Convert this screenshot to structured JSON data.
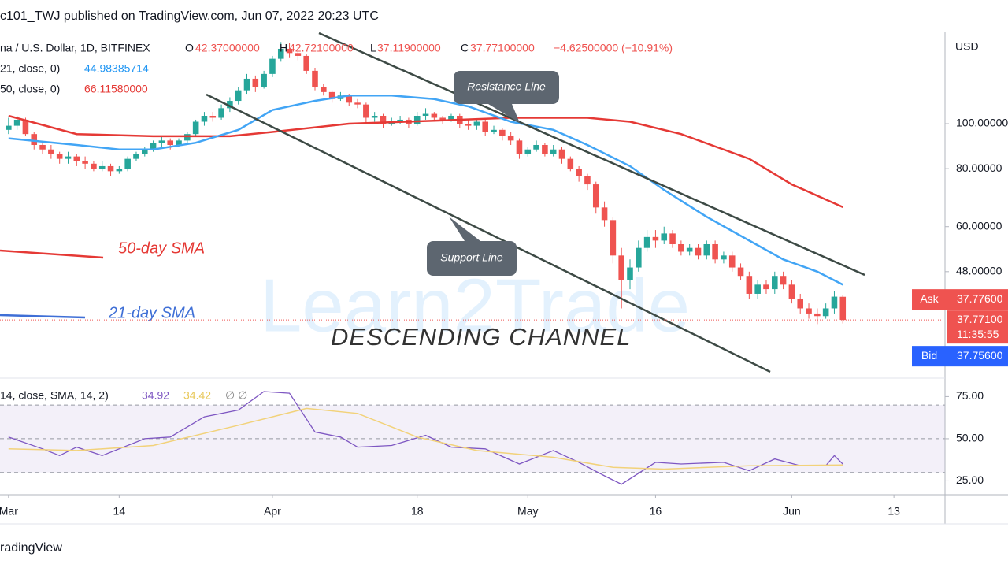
{
  "header": {
    "published": "c101_TWJ published on TradingView.com, Jun 07, 2022 20:23 UTC",
    "symbol": "na / U.S. Dollar, 1D, BITFINEX",
    "o_label": "O",
    "o": "42.37000000",
    "h_label": "H",
    "h": "42.72100000",
    "l_label": "L",
    "l": "37.11900000",
    "c_label": "C",
    "c": "37.77100000",
    "change": "−4.62500000 (−10.91%)",
    "sma21_label": "21, close, 0)",
    "sma21": "44.98385714",
    "sma50_label": "50, close, 0)",
    "sma50": "66.11580000",
    "footer": "radingView"
  },
  "chart_data": {
    "type": "candlestick",
    "log_scale": true,
    "y_axis_label": "USD",
    "xlim": [
      "2022-02-28",
      "2022-06-19"
    ],
    "ylim": [
      28.3,
      158
    ],
    "yticks": [
      {
        "value": 100,
        "label": "100.00000"
      },
      {
        "value": 80,
        "label": "80.00000"
      },
      {
        "value": 60,
        "label": "60.00000"
      },
      {
        "value": 48,
        "label": "48.00000"
      }
    ],
    "xticks": [
      {
        "value": "2022-03-01",
        "label": "Mar"
      },
      {
        "value": "2022-03-14",
        "label": "14"
      },
      {
        "value": "2022-04-01",
        "label": "Apr"
      },
      {
        "value": "2022-04-18",
        "label": "18"
      },
      {
        "value": "2022-05-01",
        "label": "May"
      },
      {
        "value": "2022-05-16",
        "label": "16"
      },
      {
        "value": "2022-06-01",
        "label": "Jun"
      },
      {
        "value": "2022-06-13",
        "label": "13"
      }
    ],
    "up_color": "#26a69a",
    "down_color": "#ef5350",
    "x": [
      "2022-03-01",
      "2022-03-02",
      "2022-03-03",
      "2022-03-04",
      "2022-03-05",
      "2022-03-06",
      "2022-03-07",
      "2022-03-08",
      "2022-03-09",
      "2022-03-10",
      "2022-03-11",
      "2022-03-12",
      "2022-03-13",
      "2022-03-14",
      "2022-03-15",
      "2022-03-16",
      "2022-03-17",
      "2022-03-18",
      "2022-03-19",
      "2022-03-20",
      "2022-03-21",
      "2022-03-22",
      "2022-03-23",
      "2022-03-24",
      "2022-03-25",
      "2022-03-26",
      "2022-03-27",
      "2022-03-28",
      "2022-03-29",
      "2022-03-30",
      "2022-03-31",
      "2022-04-01",
      "2022-04-02",
      "2022-04-03",
      "2022-04-04",
      "2022-04-05",
      "2022-04-06",
      "2022-04-07",
      "2022-04-08",
      "2022-04-09",
      "2022-04-10",
      "2022-04-11",
      "2022-04-12",
      "2022-04-13",
      "2022-04-14",
      "2022-04-15",
      "2022-04-16",
      "2022-04-17",
      "2022-04-18",
      "2022-04-19",
      "2022-04-20",
      "2022-04-21",
      "2022-04-22",
      "2022-04-23",
      "2022-04-24",
      "2022-04-25",
      "2022-04-26",
      "2022-04-27",
      "2022-04-28",
      "2022-04-29",
      "2022-04-30",
      "2022-05-01",
      "2022-05-02",
      "2022-05-03",
      "2022-05-04",
      "2022-05-05",
      "2022-05-06",
      "2022-05-07",
      "2022-05-08",
      "2022-05-09",
      "2022-05-10",
      "2022-05-11",
      "2022-05-12",
      "2022-05-13",
      "2022-05-14",
      "2022-05-15",
      "2022-05-16",
      "2022-05-17",
      "2022-05-18",
      "2022-05-19",
      "2022-05-20",
      "2022-05-21",
      "2022-05-22",
      "2022-05-23",
      "2022-05-24",
      "2022-05-25",
      "2022-05-26",
      "2022-05-27",
      "2022-05-28",
      "2022-05-29",
      "2022-05-30",
      "2022-05-31",
      "2022-06-01",
      "2022-06-02",
      "2022-06-03",
      "2022-06-04",
      "2022-06-05",
      "2022-06-06",
      "2022-06-07"
    ],
    "candles": [
      [
        97,
        103,
        95,
        99
      ],
      [
        99,
        104,
        97,
        102
      ],
      [
        102,
        103,
        94,
        95
      ],
      [
        95,
        96,
        88,
        90
      ],
      [
        90,
        91,
        86,
        88
      ],
      [
        88,
        90,
        84,
        86
      ],
      [
        86,
        87,
        82,
        84
      ],
      [
        84,
        87,
        82,
        85
      ],
      [
        85,
        86,
        81,
        83
      ],
      [
        83,
        85,
        80,
        82
      ],
      [
        82,
        83,
        79,
        80
      ],
      [
        80,
        83,
        79,
        81
      ],
      [
        81,
        82,
        77,
        79
      ],
      [
        79,
        81,
        78,
        80
      ],
      [
        80,
        85,
        79,
        84
      ],
      [
        84,
        87,
        83,
        86
      ],
      [
        86,
        89,
        85,
        88
      ],
      [
        88,
        92,
        87,
        91
      ],
      [
        91,
        94,
        89,
        92
      ],
      [
        92,
        93,
        88,
        90
      ],
      [
        90,
        93,
        89,
        92
      ],
      [
        92,
        96,
        91,
        95
      ],
      [
        95,
        102,
        94,
        101
      ],
      [
        101,
        106,
        99,
        104
      ],
      [
        104,
        106,
        101,
        103
      ],
      [
        103,
        110,
        102,
        108
      ],
      [
        108,
        114,
        106,
        112
      ],
      [
        112,
        120,
        110,
        118
      ],
      [
        118,
        128,
        116,
        125
      ],
      [
        125,
        127,
        117,
        120
      ],
      [
        120,
        130,
        119,
        128
      ],
      [
        128,
        140,
        126,
        138
      ],
      [
        138,
        150,
        136,
        145
      ],
      [
        145,
        149,
        139,
        142
      ],
      [
        142,
        146,
        137,
        140
      ],
      [
        140,
        141,
        128,
        130
      ],
      [
        130,
        132,
        118,
        120
      ],
      [
        120,
        122,
        115,
        117
      ],
      [
        117,
        118,
        111,
        113
      ],
      [
        113,
        117,
        112,
        115
      ],
      [
        115,
        116,
        109,
        111
      ],
      [
        111,
        113,
        108,
        110
      ],
      [
        110,
        111,
        100,
        103
      ],
      [
        103,
        106,
        101,
        104
      ],
      [
        104,
        105,
        98,
        100
      ],
      [
        100,
        103,
        99,
        101
      ],
      [
        101,
        104,
        100,
        102
      ],
      [
        102,
        103,
        98,
        100
      ],
      [
        100,
        106,
        99,
        104
      ],
      [
        104,
        108,
        102,
        105
      ],
      [
        105,
        106,
        101,
        103
      ],
      [
        103,
        104,
        100,
        102
      ],
      [
        102,
        105,
        101,
        104
      ],
      [
        104,
        105,
        98,
        100
      ],
      [
        100,
        102,
        97,
        99
      ],
      [
        99,
        102,
        97,
        101
      ],
      [
        101,
        102,
        94,
        96
      ],
      [
        96,
        99,
        95,
        97
      ],
      [
        97,
        98,
        92,
        94
      ],
      [
        94,
        96,
        90,
        92
      ],
      [
        92,
        93,
        84,
        86
      ],
      [
        86,
        89,
        85,
        88
      ],
      [
        88,
        92,
        87,
        90
      ],
      [
        90,
        91,
        85,
        86
      ],
      [
        86,
        90,
        85,
        88
      ],
      [
        88,
        89,
        82,
        84
      ],
      [
        84,
        85,
        79,
        80
      ],
      [
        80,
        81,
        75,
        77
      ],
      [
        77,
        78,
        72,
        74
      ],
      [
        74,
        75,
        64,
        66
      ],
      [
        66,
        68,
        60,
        62
      ],
      [
        62,
        63,
        50,
        52
      ],
      [
        52,
        54,
        40,
        46
      ],
      [
        46,
        51,
        44,
        49
      ],
      [
        49,
        56,
        48,
        54
      ],
      [
        54,
        59,
        53,
        57
      ],
      [
        57,
        59,
        54,
        56
      ],
      [
        56,
        60,
        55,
        58
      ],
      [
        58,
        59,
        54,
        55
      ],
      [
        55,
        56,
        52,
        53
      ],
      [
        53,
        55,
        52,
        54
      ],
      [
        54,
        55,
        51,
        52
      ],
      [
        52,
        56,
        51,
        55
      ],
      [
        55,
        56,
        50,
        51
      ],
      [
        51,
        53,
        50,
        52
      ],
      [
        52,
        53,
        48,
        49
      ],
      [
        49,
        50,
        46,
        47
      ],
      [
        47,
        48,
        42,
        43
      ],
      [
        43,
        46,
        42,
        45
      ],
      [
        45,
        46,
        43,
        44
      ],
      [
        44,
        48,
        43,
        47
      ],
      [
        47,
        48,
        44,
        45
      ],
      [
        45,
        46,
        41,
        42
      ],
      [
        42,
        43,
        39,
        40
      ],
      [
        40,
        41,
        38,
        39
      ],
      [
        39,
        40,
        37,
        38.5
      ],
      [
        38.5,
        41,
        38,
        40
      ],
      [
        40,
        43.5,
        39,
        42.4
      ],
      [
        42.37,
        42.721,
        37.119,
        37.771
      ]
    ],
    "series": [
      {
        "name": "50-day SMA",
        "color": "#e53935",
        "x": [
          "2022-03-01",
          "2022-03-09",
          "2022-03-18",
          "2022-03-27",
          "2022-04-01",
          "2022-04-10",
          "2022-04-20",
          "2022-04-29",
          "2022-05-08",
          "2022-05-13",
          "2022-05-19",
          "2022-05-27",
          "2022-06-01",
          "2022-06-07"
        ],
        "values": [
          104,
          95,
          94,
          94,
          96,
          100,
          101.5,
          103,
          103,
          101,
          95,
          84,
          74,
          66.1158
        ]
      },
      {
        "name": "21-day SMA",
        "color": "#42a5f5",
        "x": [
          "2022-03-01",
          "2022-03-09",
          "2022-03-14",
          "2022-03-18",
          "2022-03-23",
          "2022-03-28",
          "2022-04-01",
          "2022-04-06",
          "2022-04-10",
          "2022-04-15",
          "2022-04-20",
          "2022-04-24",
          "2022-04-29",
          "2022-05-04",
          "2022-05-08",
          "2022-05-13",
          "2022-05-17",
          "2022-05-22",
          "2022-05-27",
          "2022-05-31",
          "2022-06-04",
          "2022-06-07"
        ],
        "values": [
          93,
          90,
          88,
          88,
          91,
          97,
          107,
          112,
          115,
          115,
          113,
          109,
          101,
          97,
          90,
          81,
          72,
          63,
          56,
          51,
          48,
          44.98385714
        ]
      }
    ],
    "price_labels": {
      "ask_label": "Ask",
      "ask": "37.77600",
      "last": "37.77100",
      "countdown": "11:35:55",
      "bid_label": "Bid",
      "bid": "37.75600",
      "last_value": 37.771
    },
    "annotations": {
      "resistance": "Resistance Line",
      "support": "Support Line",
      "sma50": "50-day SMA",
      "sma21": "21-day SMA",
      "channel": "DESCENDING CHANNEL",
      "watermark": "Learn2Trade"
    }
  },
  "rsi_chart": {
    "type": "line",
    "legend": "14, close, SMA, 14, 2)",
    "rsi_text": "34.92",
    "sma_text": "34.42",
    "extra": "∅  ∅",
    "ylim": [
      16.8,
      83.6
    ],
    "yticks": [
      {
        "value": 75,
        "label": "75.00"
      },
      {
        "value": 50,
        "label": "50.00"
      },
      {
        "value": 25,
        "label": "25.00"
      }
    ],
    "bands": [
      30,
      50,
      70
    ],
    "series": [
      {
        "name": "RSI",
        "color": "#7e57c2",
        "x": [
          "2022-03-01",
          "2022-03-05",
          "2022-03-07",
          "2022-03-09",
          "2022-03-12",
          "2022-03-17",
          "2022-03-20",
          "2022-03-24",
          "2022-03-28",
          "2022-03-31",
          "2022-04-03",
          "2022-04-06",
          "2022-04-09",
          "2022-04-11",
          "2022-04-15",
          "2022-04-19",
          "2022-04-22",
          "2022-04-26",
          "2022-04-30",
          "2022-05-04",
          "2022-05-07",
          "2022-05-10",
          "2022-05-12",
          "2022-05-16",
          "2022-05-19",
          "2022-05-24",
          "2022-05-27",
          "2022-05-30",
          "2022-06-02",
          "2022-06-05",
          "2022-06-06",
          "2022-06-07"
        ],
        "values": [
          51,
          44,
          40,
          45,
          40,
          50,
          51,
          63,
          67,
          78,
          77,
          54,
          51,
          45,
          46,
          52,
          45,
          44,
          35,
          43,
          36,
          28,
          23,
          36,
          35,
          36,
          31,
          38,
          34,
          34,
          40,
          34.92
        ]
      },
      {
        "name": "RSI SMA",
        "color": "#f2d27a",
        "x": [
          "2022-03-01",
          "2022-03-09",
          "2022-03-18",
          "2022-03-28",
          "2022-04-05",
          "2022-04-11",
          "2022-04-18",
          "2022-04-25",
          "2022-05-04",
          "2022-05-11",
          "2022-05-17",
          "2022-05-27",
          "2022-06-07"
        ],
        "values": [
          44,
          43,
          46,
          58,
          68,
          65,
          51,
          43,
          39,
          33,
          32,
          34,
          34.42
        ]
      }
    ]
  }
}
